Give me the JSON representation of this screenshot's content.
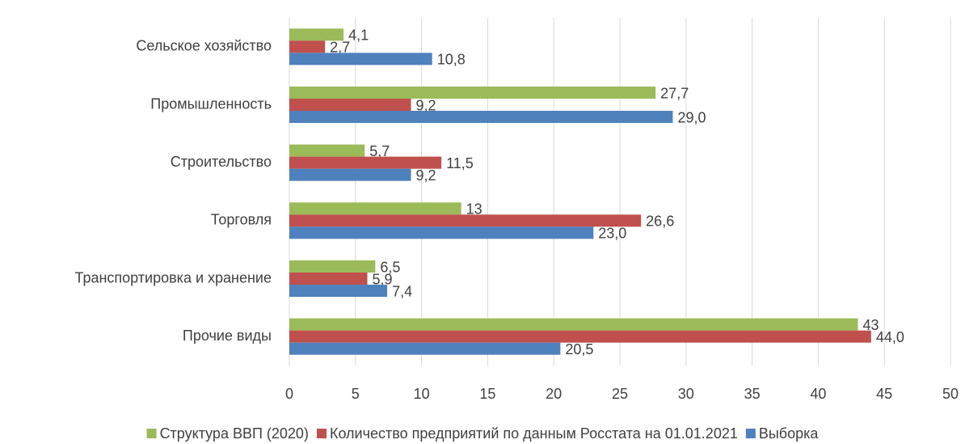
{
  "chart_data": {
    "type": "bar",
    "orientation": "horizontal",
    "categories": [
      "Сельское хозяйство",
      "Промышленность",
      "Строительство",
      "Торговля",
      "Транспортировка и хранение",
      "Прочие виды"
    ],
    "series": [
      {
        "name": "Структура ВВП (2020)",
        "color": "#9bbb59",
        "values": [
          4.1,
          27.7,
          5.7,
          13,
          6.5,
          43
        ],
        "value_labels": [
          "4,1",
          "27,7",
          "5,7",
          "13",
          "6,5",
          "43"
        ]
      },
      {
        "name": "Количество предприятий по данным Росстата на 01.01.2021",
        "color": "#c0504d",
        "values": [
          2.7,
          9.2,
          11.5,
          26.6,
          5.9,
          44.0
        ],
        "value_labels": [
          "2,7",
          "9,2",
          "11,5",
          "26,6",
          "5,9",
          "44,0"
        ]
      },
      {
        "name": "Выборка",
        "color": "#4f81bd",
        "values": [
          10.8,
          29.0,
          9.2,
          23.0,
          7.4,
          20.5
        ],
        "value_labels": [
          "10,8",
          "29,0",
          "9,2",
          "23,0",
          "7,4",
          "20,5"
        ]
      }
    ],
    "xlim": [
      0,
      50
    ],
    "xticks": [
      0,
      5,
      10,
      15,
      20,
      25,
      30,
      35,
      40,
      45,
      50
    ],
    "grid": true,
    "legend": "bottom"
  }
}
